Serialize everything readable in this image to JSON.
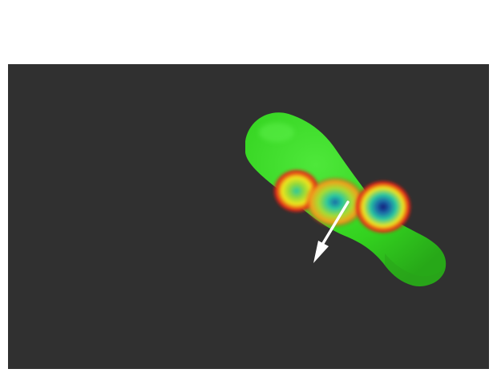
{
  "scene": {
    "background_color": "#303030",
    "page_color": "#ffffff",
    "molecule": {
      "surface_color": "#33d21f",
      "surface_shade_color": "#2aa01a",
      "highlight_color": "#5cf048"
    },
    "potential_map_colors": [
      "#e32216",
      "#f0e51c",
      "#27c8a0",
      "#1c6aa8",
      "#101a7a"
    ],
    "vector": {
      "color": "#ffffff",
      "icon": "arrow-icon"
    }
  }
}
